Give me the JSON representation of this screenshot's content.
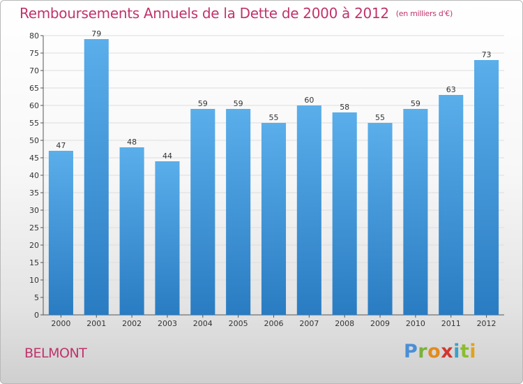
{
  "title": "Remboursements Annuels de la Dette de 2000 à 2012",
  "unit": "(en milliers d'€)",
  "city": "BELMONT",
  "logo": [
    "P",
    "r",
    "o",
    "x",
    "i",
    "t",
    "i"
  ],
  "colors": {
    "bar_light": "#5aaeea",
    "bar_dark": "#2a7cc2",
    "title": "#c0336b",
    "grid": "#dddddd"
  },
  "chart_data": {
    "type": "bar",
    "categories": [
      "2000",
      "2001",
      "2002",
      "2003",
      "2004",
      "2005",
      "2006",
      "2007",
      "2008",
      "2009",
      "2010",
      "2011",
      "2012"
    ],
    "values": [
      47,
      79,
      48,
      44,
      59,
      59,
      55,
      60,
      58,
      55,
      59,
      63,
      73
    ],
    "ylim": [
      0,
      80
    ],
    "yticks": [
      0,
      5,
      10,
      15,
      20,
      25,
      30,
      35,
      40,
      45,
      50,
      55,
      60,
      65,
      70,
      75,
      80
    ],
    "grid": true,
    "legend": "none",
    "xlabel": "",
    "ylabel": ""
  }
}
